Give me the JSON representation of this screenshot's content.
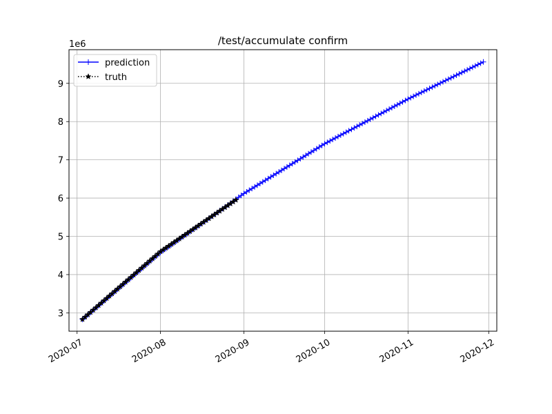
{
  "chart_data": {
    "type": "line",
    "title": "/test/accumulate confirm",
    "xlabel": "",
    "ylabel": "",
    "y_offset_label": "1e6",
    "x_axis_type": "date",
    "xlim": [
      "2020-06-28",
      "2020-12-04"
    ],
    "ylim": [
      2.52,
      9.88
    ],
    "x_ticks": [
      "2020-07-01",
      "2020-08-01",
      "2020-09-01",
      "2020-10-01",
      "2020-11-01",
      "2020-12-01"
    ],
    "x_tick_labels": [
      "2020-07",
      "2020-08",
      "2020-09",
      "2020-10",
      "2020-11",
      "2020-12"
    ],
    "y_ticks": [
      3,
      4,
      5,
      6,
      7,
      8,
      9
    ],
    "y_tick_labels": [
      "3",
      "4",
      "5",
      "6",
      "7",
      "8",
      "9"
    ],
    "grid": true,
    "legend_position": "top-left",
    "series": [
      {
        "name": "prediction",
        "color": "#0000ff",
        "line_style": "solid",
        "marker": "plus",
        "x_start": "2020-07-03",
        "x_end": "2020-11-29",
        "y_start": 2.83,
        "y_end": 9.56,
        "y_anchor_dates": [
          "2020-07-03",
          "2020-08-01",
          "2020-09-01",
          "2020-10-01",
          "2020-11-01",
          "2020-11-29"
        ],
        "y_anchor_values": [
          2.83,
          4.58,
          6.12,
          7.42,
          8.59,
          9.56
        ]
      },
      {
        "name": "truth",
        "color": "#000000",
        "line_style": "dotted",
        "marker": "star",
        "x_start": "2020-07-03",
        "x_end": "2020-08-29",
        "y_start": 2.83,
        "y_end": 5.95,
        "y_anchor_dates": [
          "2020-07-03",
          "2020-08-01",
          "2020-08-29"
        ],
        "y_anchor_values": [
          2.83,
          4.6,
          5.95
        ]
      }
    ]
  }
}
